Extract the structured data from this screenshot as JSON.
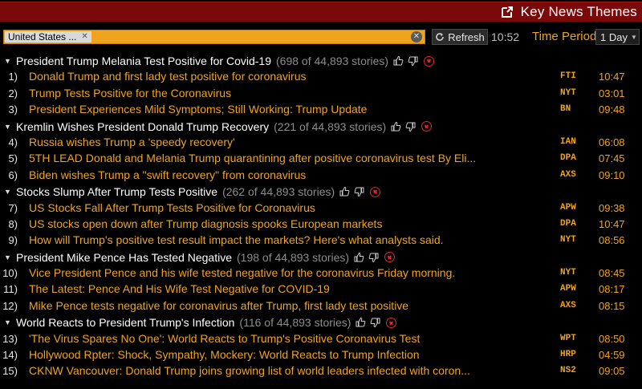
{
  "app": {
    "title": "Key News Themes"
  },
  "toolbar": {
    "search_token": "United States ...",
    "refresh_label": "Refresh",
    "time": "10:52",
    "time_period_label": "Time Period",
    "time_period_value": "1 Day"
  },
  "groups": [
    {
      "title": "President Trump Melania Test Positive for Covid-19",
      "count": "(698 of 44,893 stories)",
      "stories": [
        {
          "num": "1)",
          "headline": "Donald Trump and first lady test positive for coronavirus",
          "source": "FTI",
          "time": "10:47"
        },
        {
          "num": "2)",
          "headline": "Trump Tests Positive for the Coronavirus",
          "source": "NYT",
          "time": "03:01"
        },
        {
          "num": "3)",
          "headline": "President Experiences Mild Symptoms; Still Working: Trump Update",
          "source": "BN",
          "time": "09:48"
        }
      ]
    },
    {
      "title": "Kremlin Wishes President Donald Trump Recovery",
      "count": "(221 of 44,893 stories)",
      "stories": [
        {
          "num": "4)",
          "headline": "Russia wishes Trump a 'speedy recovery'",
          "source": "IAN",
          "time": "06:08"
        },
        {
          "num": "5)",
          "headline": "5TH LEAD Donald and Melania Trump quarantining after positive coronavirus test By Eli...",
          "source": "DPA",
          "time": "07:45"
        },
        {
          "num": "6)",
          "headline": "Biden wishes Trump a \"swift recovery\" from coronavirus",
          "source": "AXS",
          "time": "09:10"
        }
      ]
    },
    {
      "title": "Stocks Slump After Trump Tests Positive",
      "count": "(262 of 44,893 stories)",
      "stories": [
        {
          "num": "7)",
          "headline": "US Stocks Fall After Trump Tests Positive for Coronavirus",
          "source": "APW",
          "time": "09:38"
        },
        {
          "num": "8)",
          "headline": "US stocks open down after Trump diagnosis spooks European markets",
          "source": "DPA",
          "time": "10:47"
        },
        {
          "num": "9)",
          "headline": "How will Trump's positive test result impact the markets? Here's what analysts said.",
          "source": "NYT",
          "time": "08:56"
        }
      ]
    },
    {
      "title": "President Mike Pence Has Tested Negative",
      "count": "(198 of 44,893 stories)",
      "stories": [
        {
          "num": "10)",
          "headline": "Vice President Pence and his wife tested negative for the coronavirus Friday morning.",
          "source": "NYT",
          "time": "08:45"
        },
        {
          "num": "11)",
          "headline": "The Latest: Pence And His Wife Test Negative for COVID-19",
          "source": "APW",
          "time": "08:17"
        },
        {
          "num": "12)",
          "headline": "Mike Pence tests negative for coronavirus after Trump, first lady test positive",
          "source": "AXS",
          "time": "08:15"
        }
      ]
    },
    {
      "title": "World Reacts to President Trump's Infection",
      "count": "(116 of 44,893 stories)",
      "stories": [
        {
          "num": "13)",
          "headline": "'The Virus Spares No One': World Reacts to Trump's Positive Coronavirus Test",
          "source": "WPT",
          "time": "08:50"
        },
        {
          "num": "14)",
          "headline": "Hollywood Rpter: Shock, Sympathy, Mockery: World Reacts to Trump Infection",
          "source": "HRP",
          "time": "04:59"
        },
        {
          "num": "15)",
          "headline": "CKNW Vancouver: Donald Trump joins growing list of world leaders infected with coron...",
          "source": "NS2",
          "time": "09:05"
        }
      ]
    }
  ],
  "icons": {
    "external": "external-link-icon",
    "thumbs_up": "thumbs-up-icon",
    "thumbs_down": "thumbs-down-icon",
    "remove": "remove-icon"
  },
  "colors": {
    "accent": "#f0a31e",
    "title_bar": "#7a0a0a",
    "remove": "#e0282a"
  }
}
